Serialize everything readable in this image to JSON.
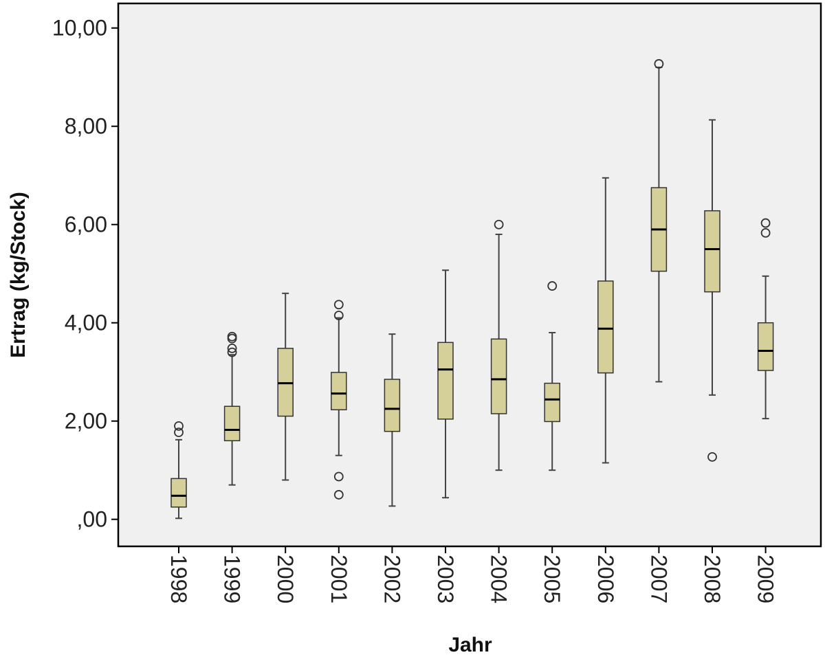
{
  "chart_data": {
    "type": "box",
    "title": "",
    "xlabel": "Jahr",
    "ylabel": "Ertrag (kg/Stock)",
    "ylim": [
      -0.55,
      10.5
    ],
    "yticks": [
      0,
      2,
      4,
      6,
      8,
      10
    ],
    "ytick_labels": [
      ",00",
      "2,00",
      "4,00",
      "6,00",
      "8,00",
      "10,00"
    ],
    "grid": false,
    "categories": [
      "1998",
      "1999",
      "2000",
      "2001",
      "2002",
      "2003",
      "2004",
      "2005",
      "2006",
      "2007",
      "2008",
      "2009"
    ],
    "boxes": [
      {
        "min": 0.02,
        "q1": 0.25,
        "median": 0.48,
        "q3": 0.83,
        "max": 1.62,
        "outliers": [
          1.77,
          1.9
        ]
      },
      {
        "min": 0.7,
        "q1": 1.6,
        "median": 1.82,
        "q3": 2.3,
        "max": 3.35,
        "outliers": [
          3.4,
          3.48,
          3.68,
          3.72
        ]
      },
      {
        "min": 0.8,
        "q1": 2.1,
        "median": 2.77,
        "q3": 3.48,
        "max": 4.6,
        "outliers": []
      },
      {
        "min": 1.3,
        "q1": 2.23,
        "median": 2.56,
        "q3": 2.99,
        "max": 4.1,
        "outliers": [
          0.5,
          0.87,
          4.15,
          4.37
        ]
      },
      {
        "min": 0.27,
        "q1": 1.79,
        "median": 2.25,
        "q3": 2.85,
        "max": 3.77,
        "outliers": []
      },
      {
        "min": 0.44,
        "q1": 2.04,
        "median": 3.05,
        "q3": 3.6,
        "max": 5.07,
        "outliers": []
      },
      {
        "min": 1.0,
        "q1": 2.15,
        "median": 2.85,
        "q3": 3.67,
        "max": 5.8,
        "outliers": [
          6.0
        ]
      },
      {
        "min": 1.0,
        "q1": 1.99,
        "median": 2.44,
        "q3": 2.77,
        "max": 3.8,
        "outliers": [
          4.75
        ]
      },
      {
        "min": 1.15,
        "q1": 2.98,
        "median": 3.88,
        "q3": 4.85,
        "max": 6.95,
        "outliers": []
      },
      {
        "min": 2.8,
        "q1": 5.05,
        "median": 5.9,
        "q3": 6.75,
        "max": 9.2,
        "outliers": [
          9.27
        ]
      },
      {
        "min": 2.53,
        "q1": 4.63,
        "median": 5.5,
        "q3": 6.28,
        "max": 8.13,
        "outliers": [
          1.27
        ]
      },
      {
        "min": 2.05,
        "q1": 3.03,
        "median": 3.43,
        "q3": 4.0,
        "max": 4.95,
        "outliers": [
          5.83,
          6.03
        ]
      }
    ],
    "colors": {
      "plot_background": "#f0f0f0",
      "box_fill": "#d5d09a",
      "box_stroke": "#333333",
      "median": "#000000",
      "whisker": "#444444",
      "outlier_stroke": "#333333",
      "frame": "#000000"
    }
  }
}
